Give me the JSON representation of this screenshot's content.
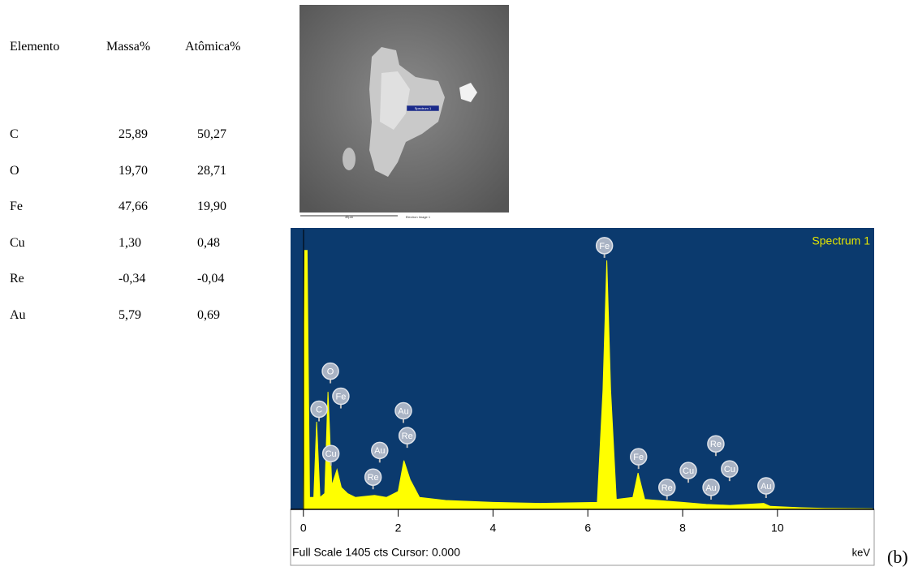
{
  "table": {
    "header": [
      "Elemento",
      "Massa%",
      "Atômica%"
    ],
    "rows": [
      [
        "C",
        "25,89",
        "50,27"
      ],
      [
        "O",
        "19,70",
        "28,71"
      ],
      [
        "Fe",
        "47,66",
        "19,90"
      ],
      [
        "Cu",
        "1,30",
        "0,48"
      ],
      [
        "Re",
        "-0,34",
        "-0,04"
      ],
      [
        "Au",
        "5,79",
        "0,69"
      ]
    ]
  },
  "image": {
    "spot_label": "Spectrum 1",
    "scale_label": "40µm",
    "caption": "Electron Image 1"
  },
  "chart_data": {
    "type": "area",
    "title": "Spectrum 1",
    "footer": "Full Scale 1405 cts Cursor: 0.000",
    "x_label": "keV",
    "color": "#ffff00",
    "background": "#0b3a6e",
    "x": [
      0,
      0.03,
      0.08,
      0.13,
      0.22,
      0.28,
      0.35,
      0.45,
      0.52,
      0.6,
      0.71,
      0.8,
      0.93,
      1.1,
      1.5,
      1.75,
      2.0,
      2.12,
      2.25,
      2.45,
      3.0,
      4.0,
      5.0,
      6.2,
      6.32,
      6.4,
      6.48,
      6.6,
      6.95,
      7.06,
      7.2,
      8.0,
      8.5,
      9.0,
      9.71,
      9.85,
      10.5,
      11.0,
      12.0
    ],
    "values": [
      40,
      1300,
      1300,
      60,
      60,
      440,
      60,
      80,
      590,
      120,
      200,
      110,
      80,
      60,
      70,
      60,
      90,
      245,
      150,
      60,
      45,
      35,
      30,
      35,
      600,
      1250,
      600,
      50,
      60,
      183,
      50,
      35,
      25,
      20,
      30,
      15,
      8,
      5,
      3
    ],
    "xlim": [
      -0.27,
      12.04
    ],
    "ylim": [
      0,
      1405
    ],
    "xticks": [
      0,
      2,
      4,
      6,
      8,
      10
    ],
    "peak_labels": [
      {
        "text": "Fe",
        "x": 6.35,
        "y": 1324
      },
      {
        "text": "O",
        "x": 0.57,
        "y": 694
      },
      {
        "text": "Fe",
        "x": 0.79,
        "y": 568
      },
      {
        "text": "C",
        "x": 0.33,
        "y": 503
      },
      {
        "text": "Cu",
        "x": 0.58,
        "y": 280
      },
      {
        "text": "Au",
        "x": 2.11,
        "y": 495
      },
      {
        "text": "Re",
        "x": 2.19,
        "y": 370
      },
      {
        "text": "Au",
        "x": 1.61,
        "y": 296
      },
      {
        "text": "Re",
        "x": 1.47,
        "y": 162
      },
      {
        "text": "Fe",
        "x": 7.07,
        "y": 264
      },
      {
        "text": "Re",
        "x": 7.67,
        "y": 110
      },
      {
        "text": "Cu",
        "x": 8.12,
        "y": 195
      },
      {
        "text": "Re",
        "x": 8.7,
        "y": 329
      },
      {
        "text": "Cu",
        "x": 8.99,
        "y": 203
      },
      {
        "text": "Au",
        "x": 8.6,
        "y": 110
      },
      {
        "text": "Au",
        "x": 9.76,
        "y": 118
      }
    ],
    "panel_label": "(b)"
  }
}
